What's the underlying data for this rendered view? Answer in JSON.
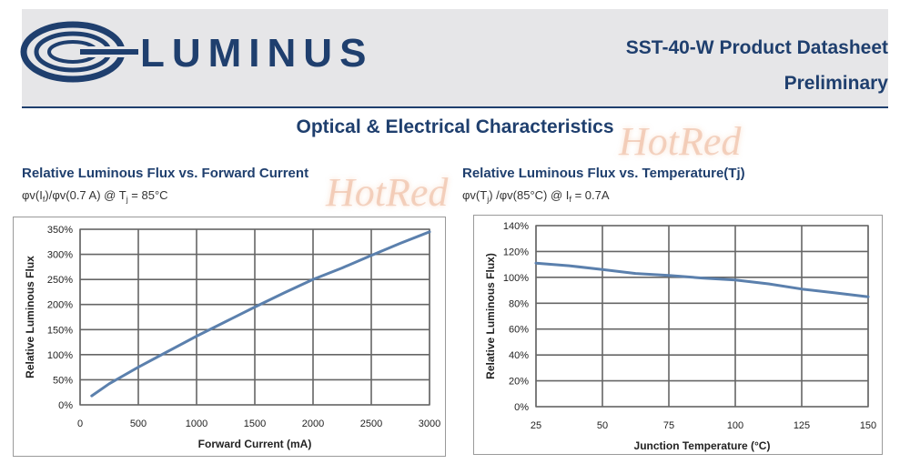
{
  "header": {
    "brand": "LUMINUS",
    "doc_title": "SST-40-W Product Datasheet",
    "doc_subtitle": "Preliminary"
  },
  "section_title": "Optical & Electrical Characteristics",
  "watermark": "HotRed",
  "colors": {
    "brand": "#1f3f6e",
    "curve": "#5b80ad",
    "header_bg": "#e6e6e8",
    "grid": "#666666"
  },
  "chart_data": [
    {
      "type": "line",
      "title": "Relative Luminous Flux vs. Forward Current",
      "subtitle_parts": [
        "φv(I",
        "f",
        ")/φv(0.7 A) @ T",
        "j",
        " = 85°C"
      ],
      "xlabel": "Forward Current (mA)",
      "ylabel": "Relative Luminous Flux",
      "xlim": [
        0,
        3000
      ],
      "ylim": [
        0,
        350
      ],
      "xticks": [
        0,
        500,
        1000,
        1500,
        2000,
        2500,
        3000
      ],
      "yticks": [
        0,
        50,
        100,
        150,
        200,
        250,
        300,
        350
      ],
      "ytick_labels": [
        "0%",
        "50%",
        "100%",
        "150%",
        "200%",
        "250%",
        "300%",
        "350%"
      ],
      "grid": true,
      "series": [
        {
          "x": [
            100,
            250,
            500,
            750,
            1000,
            1250,
            1500,
            1750,
            2000,
            2250,
            2500,
            2750,
            3000
          ],
          "y": [
            18,
            42,
            75,
            106,
            137,
            166,
            195,
            223,
            250,
            273,
            298,
            322,
            345
          ]
        }
      ]
    },
    {
      "type": "line",
      "title": "Relative  Luminous Flux  vs. Temperature(Tj)",
      "subtitle_parts": [
        "φv(T",
        "j",
        ") /φv(85°C) @ I",
        "f",
        " = 0.7A"
      ],
      "xlabel": "Junction Temperature (°C)",
      "ylabel": "Relative Luminous Flux)",
      "xlim": [
        25,
        150
      ],
      "ylim": [
        0,
        140
      ],
      "xticks": [
        25,
        50,
        75,
        100,
        125,
        150
      ],
      "yticks": [
        0,
        20,
        40,
        60,
        80,
        100,
        120,
        140
      ],
      "ytick_labels": [
        "0%",
        "20%",
        "40%",
        "60%",
        "80%",
        "100%",
        "120%",
        "140%"
      ],
      "grid": true,
      "series": [
        {
          "x": [
            25,
            37.5,
            50,
            62.5,
            75,
            87.5,
            100,
            112.5,
            125,
            137.5,
            150
          ],
          "y": [
            111,
            109,
            106,
            103,
            101.5,
            99.5,
            98,
            95,
            91,
            88,
            85
          ]
        }
      ]
    }
  ]
}
